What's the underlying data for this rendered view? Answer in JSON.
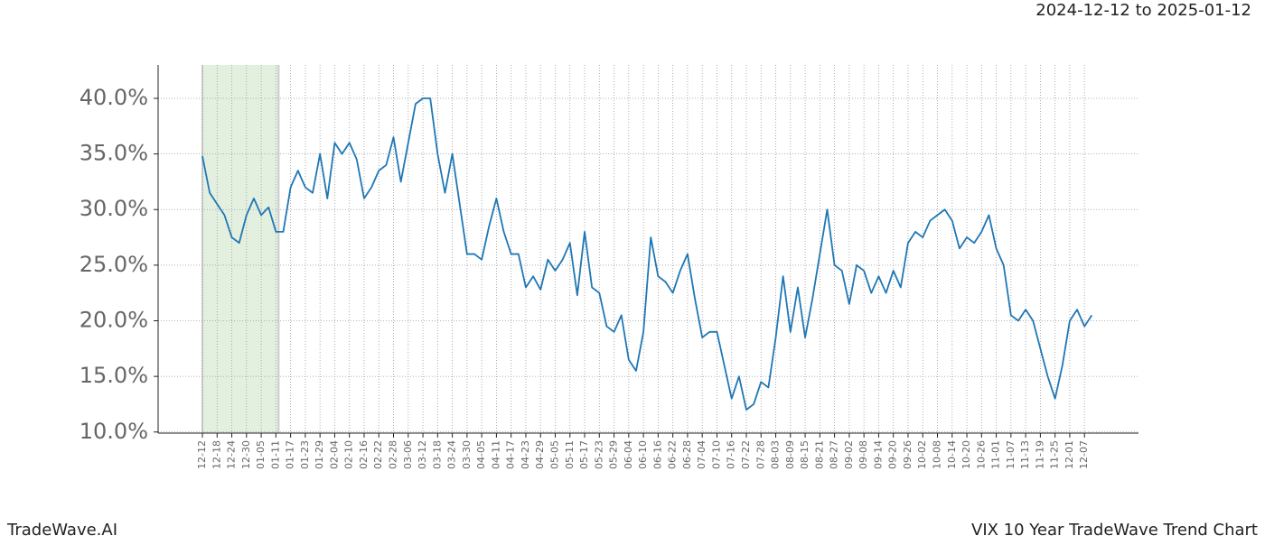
{
  "chart_data": {
    "type": "line",
    "title": "VIX 10 Year TradeWave Trend Chart",
    "date_range": "2024-12-12 to 2025-01-12",
    "watermark": "TradeWave.AI",
    "x": [
      "12-12",
      "12-15",
      "12-18",
      "12-21",
      "12-24",
      "12-27",
      "12-30",
      "01-02",
      "01-05",
      "01-08",
      "01-11",
      "01-14",
      "01-17",
      "01-20",
      "01-23",
      "01-26",
      "01-29",
      "02-01",
      "02-04",
      "02-07",
      "02-10",
      "02-13",
      "02-16",
      "02-19",
      "02-22",
      "02-25",
      "02-28",
      "03-03",
      "03-06",
      "03-09",
      "03-12",
      "03-15",
      "03-18",
      "03-21",
      "03-24",
      "03-27",
      "03-30",
      "04-02",
      "04-05",
      "04-08",
      "04-11",
      "04-14",
      "04-17",
      "04-20",
      "04-23",
      "04-26",
      "04-29",
      "05-02",
      "05-05",
      "05-08",
      "05-11",
      "05-14",
      "05-17",
      "05-20",
      "05-23",
      "05-26",
      "05-29",
      "06-01",
      "06-04",
      "06-07",
      "06-10",
      "06-13",
      "06-16",
      "06-19",
      "06-22",
      "06-25",
      "06-28",
      "07-01",
      "07-04",
      "07-07",
      "07-10",
      "07-13",
      "07-16",
      "07-19",
      "07-22",
      "07-25",
      "07-28",
      "07-31",
      "08-03",
      "08-06",
      "08-09",
      "08-12",
      "08-15",
      "08-18",
      "08-21",
      "08-24",
      "08-27",
      "08-30",
      "09-02",
      "09-05",
      "09-08",
      "09-11",
      "09-14",
      "09-17",
      "09-20",
      "09-23",
      "09-26",
      "09-29",
      "10-02",
      "10-05",
      "10-08",
      "10-11",
      "10-14",
      "10-17",
      "10-20",
      "10-23",
      "10-26",
      "10-29",
      "11-01",
      "11-04",
      "11-07",
      "11-10",
      "11-13",
      "11-16",
      "11-19",
      "11-22",
      "11-25",
      "11-28",
      "12-01",
      "12-04",
      "12-07",
      "12-10"
    ],
    "values": [
      34.8,
      31.5,
      30.5,
      29.5,
      27.5,
      27,
      29.5,
      31,
      29.5,
      30.2,
      28,
      28,
      32,
      33.5,
      32,
      31.5,
      35,
      31,
      36,
      35,
      36,
      34.5,
      31,
      32,
      33.5,
      34,
      36.5,
      32.5,
      36,
      39.5,
      40,
      40,
      35,
      31.5,
      35,
      30.5,
      26,
      26,
      25.5,
      28.5,
      31,
      28,
      26,
      26,
      23,
      24,
      22.8,
      25.5,
      24.5,
      25.5,
      27,
      22.3,
      28,
      23,
      22.5,
      19.5,
      19,
      20.5,
      16.5,
      15.5,
      19,
      27.5,
      24,
      23.5,
      22.5,
      24.5,
      26,
      22,
      18.5,
      19,
      19,
      16,
      13,
      15,
      12,
      12.5,
      14.5,
      14,
      18.5,
      24,
      19,
      23,
      18.5,
      22,
      26,
      30,
      25,
      24.5,
      21.5,
      25,
      24.5,
      22.5,
      24,
      22.5,
      24.5,
      23,
      27,
      28,
      27.5,
      29,
      29.5,
      30,
      29,
      26.5,
      27.5,
      27,
      28,
      29.5,
      26.5,
      25,
      20.5,
      20,
      21,
      20,
      17.5,
      15,
      13,
      16,
      20,
      21,
      19.5,
      20.5
    ],
    "color": "#1f77b4",
    "xticks": [
      "12-12",
      "12-18",
      "12-24",
      "12-30",
      "01-05",
      "01-11",
      "01-17",
      "01-23",
      "01-29",
      "02-04",
      "02-10",
      "02-16",
      "02-22",
      "02-28",
      "03-06",
      "03-12",
      "03-18",
      "03-24",
      "03-30",
      "04-05",
      "04-11",
      "04-17",
      "04-23",
      "04-29",
      "05-05",
      "05-11",
      "05-17",
      "05-23",
      "05-29",
      "06-04",
      "06-10",
      "06-16",
      "06-22",
      "06-28",
      "07-04",
      "07-10",
      "07-16",
      "07-22",
      "07-28",
      "08-03",
      "08-09",
      "08-15",
      "08-21",
      "08-27",
      "09-02",
      "09-08",
      "09-14",
      "09-20",
      "09-26",
      "10-02",
      "10-08",
      "10-14",
      "10-20",
      "10-26",
      "11-01",
      "11-07",
      "11-13",
      "11-19",
      "11-25",
      "12-01",
      "12-07"
    ],
    "ylim": [
      9.9,
      43
    ],
    "yticks": [
      {
        "value": 10,
        "label": "10.0%"
      },
      {
        "value": 15,
        "label": "15.0%"
      },
      {
        "value": 20,
        "label": "20.0%"
      },
      {
        "value": 25,
        "label": "25.0%"
      },
      {
        "value": 30,
        "label": "30.0%"
      },
      {
        "value": 35,
        "label": "35.0%"
      },
      {
        "value": 40,
        "label": "40.0%"
      }
    ],
    "grid": true,
    "highlight": {
      "from": "12-12",
      "to": "01-11",
      "color": "#e3f0e0"
    }
  }
}
